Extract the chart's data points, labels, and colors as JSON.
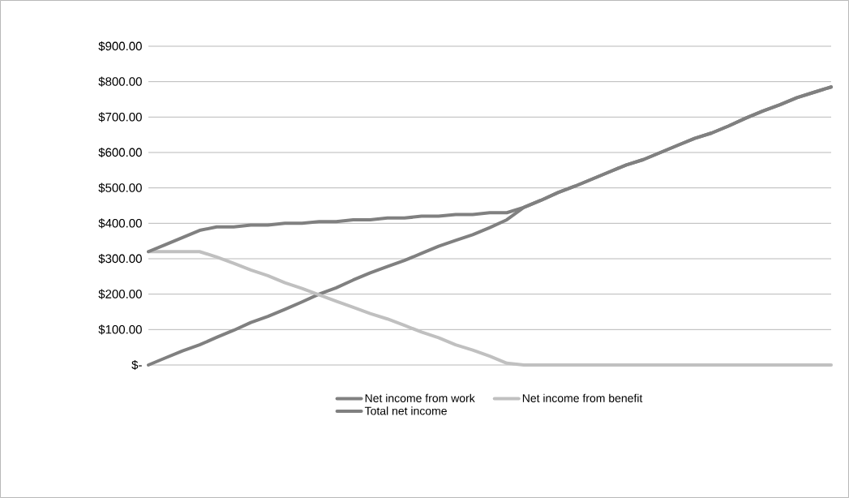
{
  "chart_data": {
    "type": "line",
    "categories": [
      null,
      null,
      null,
      null,
      null,
      null,
      null,
      null,
      null,
      null,
      null,
      null,
      null,
      null,
      null,
      null,
      null,
      null,
      null,
      null,
      null,
      null,
      null,
      null,
      null,
      null,
      null,
      null,
      null,
      null,
      null,
      null,
      null,
      null,
      null,
      null,
      null,
      null,
      null,
      null,
      null
    ],
    "series": [
      {
        "name": "Net income from work",
        "color": "#808080",
        "values": [
          0,
          20,
          40,
          57,
          78,
          98,
          120,
          137,
          157,
          178,
          200,
          218,
          240,
          260,
          278,
          295,
          315,
          335,
          352,
          368,
          388,
          410,
          445,
          465,
          487,
          505,
          525,
          545,
          565,
          580,
          600,
          620,
          640,
          655,
          675,
          697,
          717,
          735,
          755,
          770,
          785
        ]
      },
      {
        "name": "Net income from benefit",
        "color": "#c0c0c0",
        "values": [
          320,
          320,
          320,
          320,
          305,
          287,
          268,
          252,
          232,
          216,
          198,
          180,
          163,
          145,
          130,
          112,
          93,
          77,
          57,
          42,
          25,
          5,
          0,
          0,
          0,
          0,
          0,
          0,
          0,
          0,
          0,
          0,
          0,
          0,
          0,
          0,
          0,
          0,
          0,
          0,
          0
        ]
      },
      {
        "name": "Total net income",
        "color": "#808080",
        "values": [
          320,
          340,
          360,
          380,
          390,
          390,
          395,
          395,
          400,
          400,
          405,
          405,
          410,
          410,
          415,
          415,
          420,
          420,
          425,
          425,
          430,
          430,
          445,
          465,
          487,
          505,
          525,
          545,
          565,
          580,
          600,
          620,
          640,
          655,
          675,
          697,
          717,
          735,
          755,
          770,
          785
        ]
      }
    ],
    "ylim": [
      0,
      900
    ],
    "yticks": [
      {
        "value": 0,
        "label": "$-"
      },
      {
        "value": 100,
        "label": "$100.00"
      },
      {
        "value": 200,
        "label": "$200.00"
      },
      {
        "value": 300,
        "label": "$300.00"
      },
      {
        "value": 400,
        "label": "$400.00"
      },
      {
        "value": 500,
        "label": "$500.00"
      },
      {
        "value": 600,
        "label": "$600.00"
      },
      {
        "value": 700,
        "label": "$700.00"
      },
      {
        "value": 800,
        "label": "$800.00"
      },
      {
        "value": 900,
        "label": "$900.00"
      }
    ],
    "grid": "y",
    "legend": "bottom",
    "marker": "none",
    "line_style": "solid"
  }
}
